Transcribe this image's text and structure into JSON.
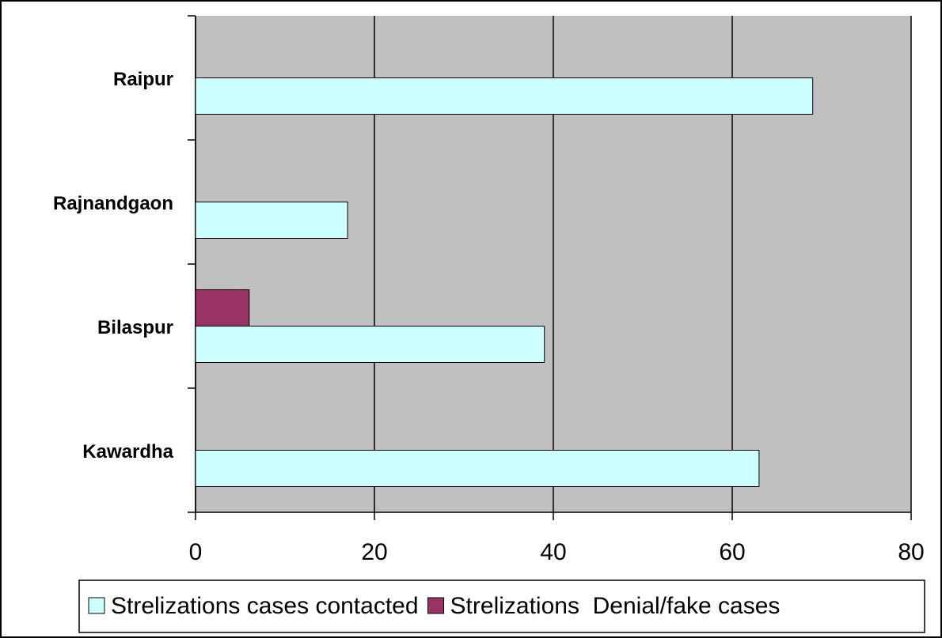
{
  "chart_data": {
    "type": "hbar",
    "categories": [
      "Raipur",
      "Rajnandgaon",
      "Bilaspur",
      "Kawardha"
    ],
    "series": [
      {
        "name": "Strelizations cases contacted",
        "color": "#ccffff",
        "values": [
          69,
          17,
          39,
          63
        ]
      },
      {
        "name": "Strelizations  Denial/fake cases",
        "color": "#993366",
        "values": [
          0,
          0,
          6,
          0
        ]
      }
    ],
    "xlim": [
      0,
      80
    ],
    "xticks": [
      0,
      20,
      40,
      60,
      80
    ],
    "grid": true,
    "legend": "bottom"
  }
}
